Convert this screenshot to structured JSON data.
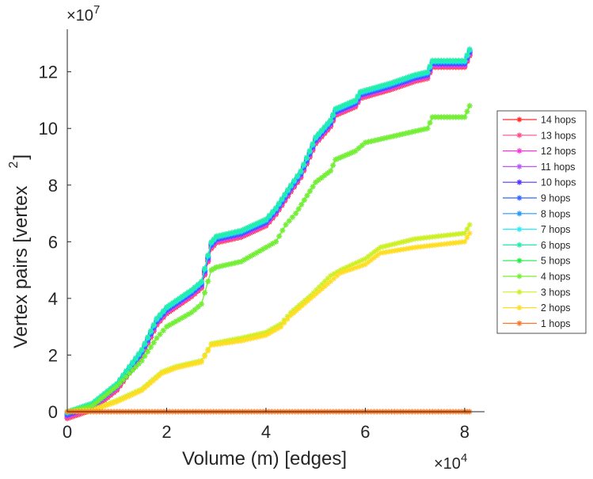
{
  "chart_data": {
    "type": "line",
    "title": "",
    "xlabel": "Volume (m) [edges]",
    "ylabel": "Vertex pairs [vertex",
    "ylabel_superscript": "2",
    "ylabel_close": "]",
    "x_multiplier": "×10",
    "x_multiplier_exp": "4",
    "y_multiplier": "×10",
    "y_multiplier_exp": "7",
    "xlim": [
      0,
      8.4
    ],
    "ylim": [
      0,
      13.5
    ],
    "xticks": [
      0,
      2,
      4,
      6,
      8
    ],
    "yticks": [
      0,
      2,
      4,
      6,
      8,
      10,
      12
    ],
    "grid": false,
    "legend_position": "outside-right",
    "series": [
      {
        "name": "14 hops",
        "color": "#ff2a2a",
        "group": "top"
      },
      {
        "name": "13 hops",
        "color": "#ff4f8a",
        "group": "top"
      },
      {
        "name": "12 hops",
        "color": "#ff33dd",
        "group": "top"
      },
      {
        "name": "11 hops",
        "color": "#bb55ff",
        "group": "top"
      },
      {
        "name": "10 hops",
        "color": "#5533ff",
        "group": "top"
      },
      {
        "name": "9 hops",
        "color": "#3366ff",
        "group": "top"
      },
      {
        "name": "8 hops",
        "color": "#2299ff",
        "group": "top"
      },
      {
        "name": "7 hops",
        "color": "#22eeff",
        "group": "top"
      },
      {
        "name": "6 hops",
        "color": "#22eeaa",
        "group": "top"
      },
      {
        "name": "5 hops",
        "color": "#22ee44",
        "group": "mid"
      },
      {
        "name": "4 hops",
        "color": "#77ee33",
        "group": "mid"
      },
      {
        "name": "3 hops",
        "color": "#ccf022",
        "group": "low"
      },
      {
        "name": "2 hops",
        "color": "#ffdd22",
        "group": "low2"
      },
      {
        "name": "1 hops",
        "color": "#ff7722",
        "group": "flat"
      }
    ],
    "groups": {
      "top": {
        "x": [
          0,
          0.5,
          1,
          1.5,
          1.8,
          2,
          2.5,
          2.7,
          2.9,
          3,
          3.5,
          4,
          4.2,
          4.5,
          4.7,
          5,
          5.3,
          5.4,
          5.8,
          5.9,
          6.5,
          7,
          7.25,
          7.35,
          8,
          8.1
        ],
        "y": [
          0,
          0.3,
          1.0,
          2.2,
          3.3,
          3.7,
          4.3,
          4.6,
          6.0,
          6.2,
          6.4,
          6.8,
          7.2,
          8.0,
          8.5,
          9.7,
          10.3,
          10.7,
          11.0,
          11.3,
          11.6,
          11.9,
          12.0,
          12.4,
          12.4,
          12.8
        ]
      },
      "mid": {
        "x": [
          0,
          0.5,
          1,
          1.5,
          1.8,
          2,
          2.5,
          2.7,
          2.9,
          3,
          3.5,
          4,
          4.2,
          4.4,
          4.6,
          5,
          5.3,
          5.4,
          5.8,
          6,
          6.5,
          7,
          7.25,
          7.35,
          8,
          8.1
        ],
        "y": [
          0,
          0.2,
          0.9,
          1.8,
          2.6,
          3.0,
          3.5,
          3.8,
          5.0,
          5.1,
          5.3,
          5.8,
          6.0,
          6.6,
          7.0,
          8.1,
          8.5,
          8.9,
          9.2,
          9.5,
          9.7,
          9.9,
          10.0,
          10.4,
          10.4,
          10.8
        ]
      },
      "low": {
        "x": [
          0,
          0.5,
          1,
          1.5,
          1.9,
          2.2,
          2.7,
          2.9,
          3.5,
          4,
          4.3,
          4.5,
          4.9,
          5.3,
          5.5,
          6,
          6.3,
          7,
          8,
          8.1
        ],
        "y": [
          0,
          0.05,
          0.4,
          0.8,
          1.4,
          1.6,
          1.8,
          2.4,
          2.6,
          2.8,
          3.1,
          3.5,
          4.1,
          4.8,
          5.0,
          5.4,
          5.8,
          6.1,
          6.3,
          6.6
        ]
      },
      "low2": {
        "x": [
          0,
          0.5,
          1,
          1.5,
          1.9,
          2.2,
          2.7,
          2.9,
          3.5,
          4,
          4.3,
          4.5,
          4.9,
          5.3,
          5.5,
          6,
          6.3,
          7,
          8,
          8.1
        ],
        "y": [
          0,
          0.05,
          0.35,
          0.75,
          1.35,
          1.55,
          1.75,
          2.35,
          2.5,
          2.7,
          3.0,
          3.4,
          4.0,
          4.6,
          4.9,
          5.2,
          5.6,
          5.8,
          6.0,
          6.3
        ]
      },
      "flat": {
        "x": [
          0,
          1,
          2,
          3,
          4,
          5,
          6,
          7,
          8,
          8.1
        ],
        "y": [
          0,
          0,
          0,
          0,
          0,
          0,
          0,
          0,
          0,
          0
        ]
      }
    }
  }
}
